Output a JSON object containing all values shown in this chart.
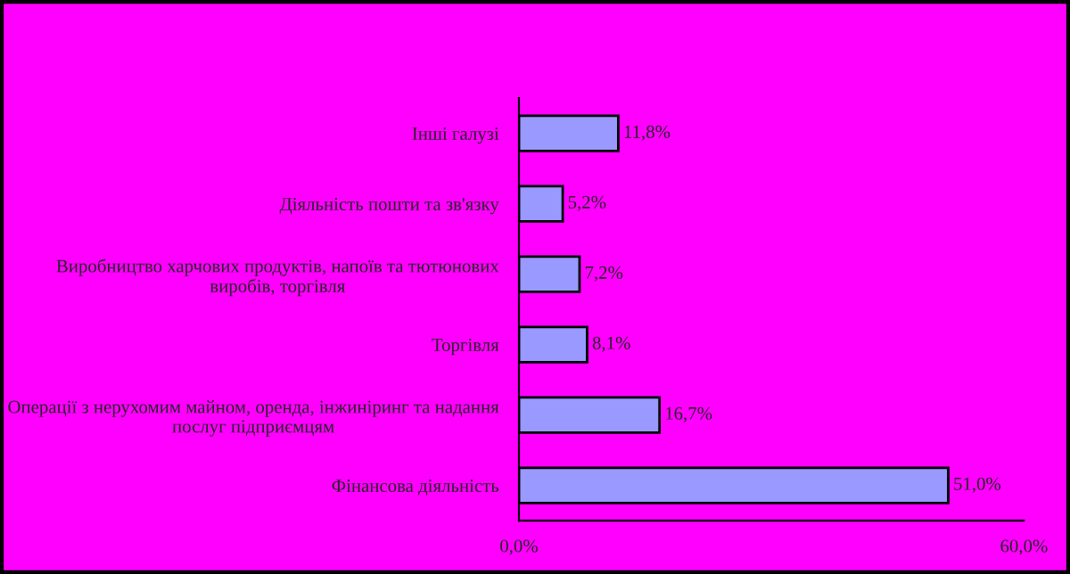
{
  "chart_data": {
    "type": "bar",
    "orientation": "horizontal",
    "categories": [
      "Інші галузі",
      "Діяльність пошти та зв'язку",
      "Виробництво харчових продуктів, напоїв та тютюнових виробів, торгівля",
      "Торгівля",
      "Операції з нерухомим майном, оренда, інжиніринг та надання послуг підприємцям",
      "Фінансова діяльність"
    ],
    "values": [
      11.8,
      5.2,
      7.2,
      8.1,
      16.7,
      51.0
    ],
    "value_labels": [
      "11,8%",
      "5,2%",
      "7,2%",
      "8,1%",
      "16,7%",
      "51,0%"
    ],
    "color": "#9999ff",
    "xlim": [
      0,
      60
    ],
    "xticks": [
      {
        "value": 0,
        "label": "0,0%"
      },
      {
        "value": 60,
        "label": "60,0%"
      }
    ],
    "grid": false,
    "legend": false
  }
}
